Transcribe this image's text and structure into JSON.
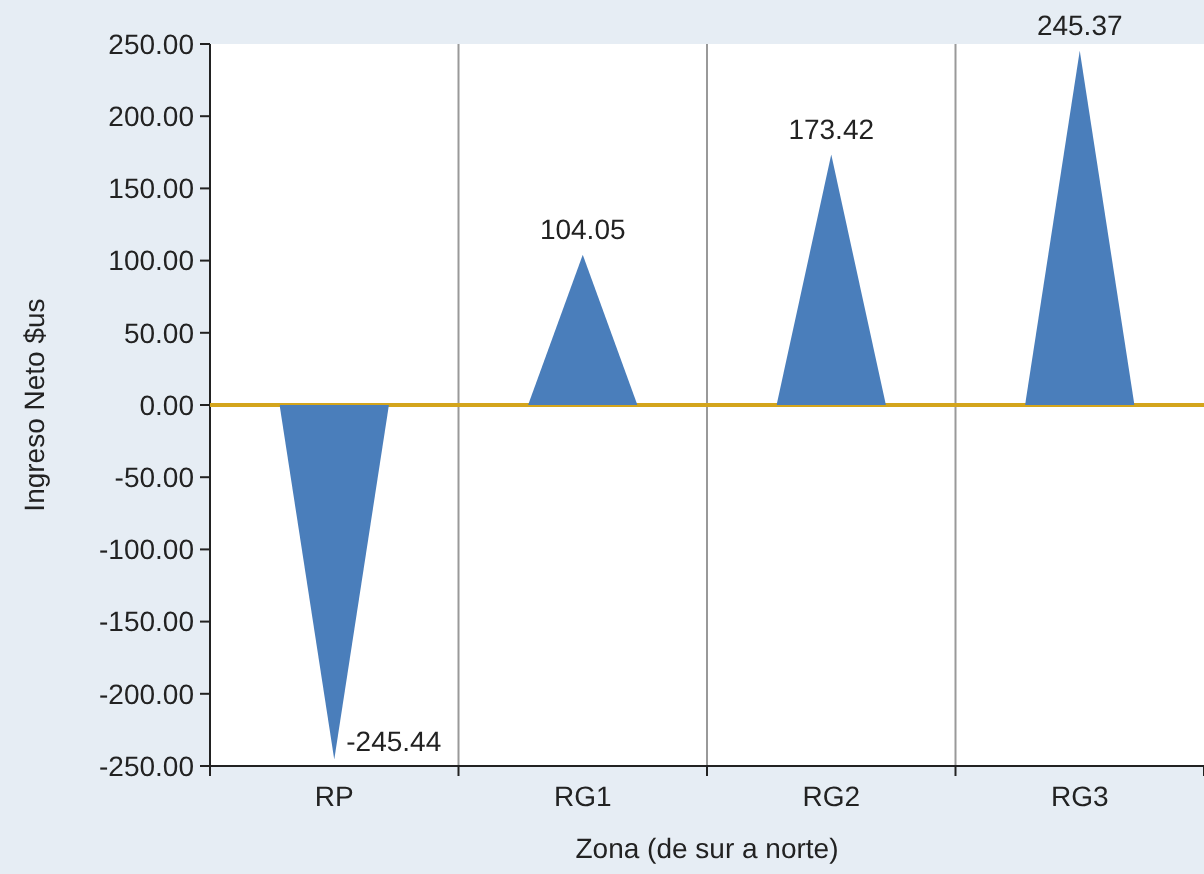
{
  "chart_data": {
    "type": "bar",
    "xlabel": "Zona (de sur a norte)",
    "ylabel": "Ingreso Neto $us",
    "categories": [
      "RP",
      "RG1",
      "RG2",
      "RG3"
    ],
    "values": [
      -245.44,
      104.05,
      173.42,
      245.37
    ],
    "color": "#4a7ebb",
    "data_labels": true,
    "ylim": [
      -250,
      250
    ],
    "yticks": [
      {
        "value": -250,
        "label": "-250.00"
      },
      {
        "value": -200,
        "label": "-200.00"
      },
      {
        "value": -150,
        "label": "-150.00"
      },
      {
        "value": -100,
        "label": "-100.00"
      },
      {
        "value": -50,
        "label": "-50.00"
      },
      {
        "value": 0,
        "label": "0.00"
      },
      {
        "value": 50,
        "label": "50.00"
      },
      {
        "value": 100,
        "label": "100.00"
      },
      {
        "value": 150,
        "label": "150.00"
      },
      {
        "value": 200,
        "label": "200.00"
      },
      {
        "value": 250,
        "label": "250.00"
      }
    ],
    "grid": "x",
    "ref_lines": [
      {
        "axis": "y",
        "value": 0,
        "color": "#d4a51c"
      }
    ]
  }
}
